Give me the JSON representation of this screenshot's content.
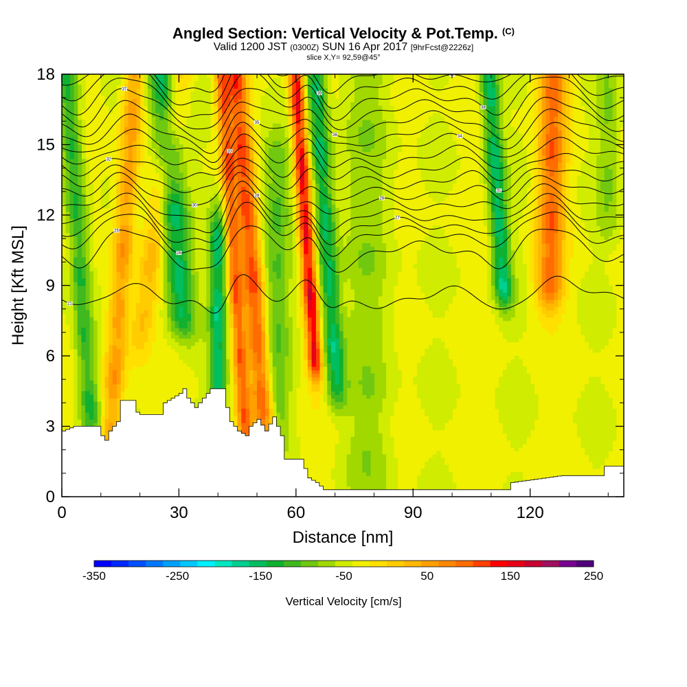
{
  "header": {
    "title": "Angled Section: Vertical Velocity & Pot.Temp.",
    "title_suffix": "(C)",
    "valid_prefix": "Valid 1200 JST",
    "valid_utc": "(0300Z)",
    "valid_date": "SUN 16 Apr 2017",
    "forecast": "[9hrFcst@2226z]",
    "slice": "slice X,Y= 92,59@45°"
  },
  "chart_data": {
    "type": "heatmap",
    "title": "Angled Section: Vertical Velocity & Pot.Temp.",
    "xlabel": "Distance [nm]",
    "ylabel": "Height [Kft MSL]",
    "xlim": [
      0,
      144
    ],
    "ylim": [
      0,
      18
    ],
    "x_ticks": [
      0,
      30,
      60,
      90,
      120
    ],
    "y_ticks": [
      0,
      3,
      6,
      9,
      12,
      15,
      18
    ],
    "colorbar": {
      "label": "Vertical Velocity [cm/s]",
      "min": -350,
      "max": 250,
      "step": 25,
      "tick_values": [
        -350,
        -250,
        -150,
        -50,
        50,
        150,
        250
      ],
      "colors": [
        "#0000ff",
        "#0028ff",
        "#0050ff",
        "#0078ff",
        "#00a0ff",
        "#00c8ff",
        "#00f0ff",
        "#00e8c0",
        "#00d090",
        "#00be60",
        "#10b030",
        "#40b820",
        "#70c810",
        "#a0d800",
        "#d0ec00",
        "#f0f000",
        "#ffe000",
        "#ffcc00",
        "#ffb800",
        "#ffa000",
        "#ff8800",
        "#ff6c00",
        "#ff4000",
        "#ff0000",
        "#e60018",
        "#c80030",
        "#a01060",
        "#780090",
        "#50007a"
      ]
    },
    "velocity_cells": [
      {
        "x": 5,
        "w": 2.6,
        "ybot": 2.8,
        "ytop": 18,
        "v": -110,
        "tilt": -0.4
      },
      {
        "x": 15,
        "w": 2.6,
        "ybot": 2.8,
        "ytop": 18,
        "v": 115,
        "tilt": 0.4
      },
      {
        "x": 22,
        "w": 3.0,
        "ybot": 7,
        "ytop": 18,
        "v": 70,
        "tilt": 0.9
      },
      {
        "x": 30,
        "w": 3.6,
        "ybot": 8,
        "ytop": 18,
        "v": -140,
        "tilt": -0.5
      },
      {
        "x": 40,
        "w": 2.2,
        "ybot": 4.5,
        "ytop": 11,
        "v": -145,
        "tilt": 0
      },
      {
        "x": 44.5,
        "w": 1.8,
        "ybot": 3,
        "ytop": 18,
        "v": 150,
        "tilt": -0.4
      },
      {
        "x": 49,
        "w": 2.6,
        "ybot": 3,
        "ytop": 18,
        "v": 170,
        "tilt": -0.5
      },
      {
        "x": 55,
        "w": 3.5,
        "ybot": 3,
        "ytop": 14,
        "v": -70,
        "tilt": 0
      },
      {
        "x": 63.5,
        "w": 1.8,
        "ybot": 6,
        "ytop": 18,
        "v": 220,
        "tilt": -0.4
      },
      {
        "x": 68.5,
        "w": 2.6,
        "ybot": 5,
        "ytop": 18,
        "v": -140,
        "tilt": -0.4
      },
      {
        "x": 79,
        "w": 6,
        "ybot": 0.3,
        "ytop": 18,
        "v": -45,
        "tilt": 0
      },
      {
        "x": 113,
        "w": 2.4,
        "ybot": 9,
        "ytop": 18,
        "v": -140,
        "tilt": -0.4
      },
      {
        "x": 125,
        "w": 3.4,
        "ybot": 9,
        "ytop": 18,
        "v": 150,
        "tilt": 0.1
      },
      {
        "x": 140,
        "w": 3.0,
        "ybot": 12,
        "ytop": 18,
        "v": -50,
        "tilt": 0
      }
    ],
    "theta_levels": [
      {
        "base": 8.6,
        "label": "21",
        "label_x": 2
      },
      {
        "base": 10.6,
        "label": "25",
        "label_x": 14
      },
      {
        "base": 11.3,
        "label": "26",
        "label_x": 30
      },
      {
        "base": 11.7,
        "label": "27",
        "label_x": 86
      },
      {
        "base": 12.1,
        "label": "28",
        "label_x": 50
      },
      {
        "base": 12.6,
        "label": "29",
        "label_x": 82
      },
      {
        "base": 13.1,
        "label": "30",
        "label_x": 34
      },
      {
        "base": 13.6,
        "label": "31",
        "label_x": 112
      },
      {
        "base": 14.1,
        "label": "32",
        "label_x": 12
      },
      {
        "base": 14.6,
        "label": "33",
        "label_x": 43
      },
      {
        "base": 15.1,
        "label": "34",
        "label_x": 102
      },
      {
        "base": 15.6,
        "label": "35",
        "label_x": 50
      },
      {
        "base": 16.1,
        "label": "36",
        "label_x": 70
      },
      {
        "base": 16.6,
        "label": "37",
        "label_x": 16
      },
      {
        "base": 17.1,
        "label": "38",
        "label_x": 108
      },
      {
        "base": 17.6,
        "label": "39",
        "label_x": 66
      },
      {
        "base": 18.1,
        "label": "40",
        "label_x": 100
      }
    ],
    "terrain": [
      [
        0,
        2.8
      ],
      [
        3,
        3.0
      ],
      [
        9,
        3.0
      ],
      [
        10,
        2.6
      ],
      [
        11,
        2.4
      ],
      [
        12,
        2.8
      ],
      [
        14,
        3.2
      ],
      [
        15,
        4.1
      ],
      [
        18,
        4.1
      ],
      [
        19,
        3.6
      ],
      [
        20,
        3.5
      ],
      [
        25,
        3.5
      ],
      [
        26,
        4.0
      ],
      [
        28,
        4.2
      ],
      [
        30,
        4.4
      ],
      [
        31,
        4.6
      ],
      [
        32,
        4.2
      ],
      [
        34,
        3.8
      ],
      [
        36,
        4.2
      ],
      [
        38,
        4.6
      ],
      [
        41,
        4.6
      ],
      [
        42,
        3.8
      ],
      [
        43,
        3.2
      ],
      [
        45,
        2.8
      ],
      [
        47,
        2.6
      ],
      [
        48,
        3.0
      ],
      [
        50,
        3.3
      ],
      [
        52,
        2.8
      ],
      [
        54,
        3.4
      ],
      [
        56,
        2.6
      ],
      [
        57,
        1.6
      ],
      [
        61,
        1.6
      ],
      [
        62,
        1.2
      ],
      [
        63,
        0.8
      ],
      [
        65,
        0.6
      ],
      [
        67,
        0.3
      ],
      [
        114,
        0.3
      ],
      [
        115,
        0.6
      ],
      [
        128,
        0.9
      ],
      [
        138,
        0.9
      ],
      [
        139,
        1.3
      ],
      [
        144,
        1.3
      ]
    ]
  }
}
